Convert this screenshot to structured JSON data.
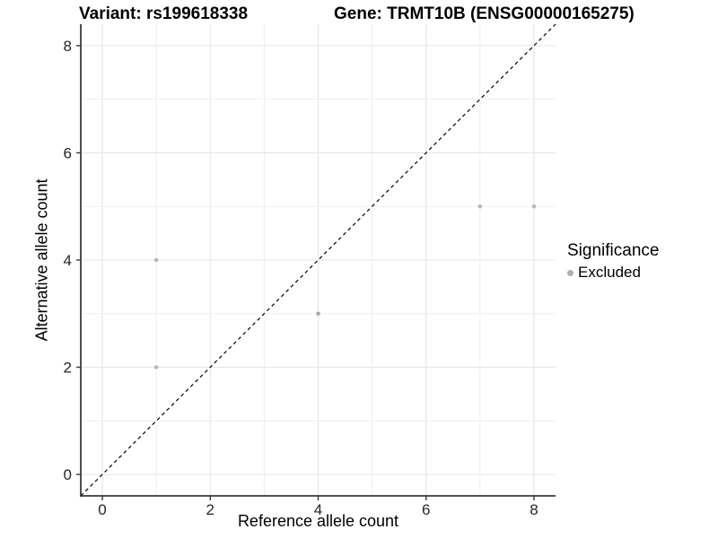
{
  "header": {
    "variant_title": "Variant: rs199618338",
    "gene_title": "Gene: TRMT10B (ENSG00000165275)"
  },
  "legend": {
    "title": "Significance",
    "items": [
      {
        "label": "Excluded",
        "color": "#aeaeae"
      }
    ]
  },
  "chart_data": {
    "type": "scatter",
    "title": "",
    "xlabel": "Reference allele count",
    "ylabel": "Alternative allele count",
    "xlim": [
      -0.4,
      8.4
    ],
    "ylim": [
      -0.4,
      8.4
    ],
    "x_ticks": [
      0,
      2,
      4,
      6,
      8
    ],
    "y_ticks": [
      0,
      2,
      4,
      6,
      8
    ],
    "grid_values": [
      0,
      1,
      2,
      3,
      4,
      5,
      6,
      7,
      8
    ],
    "grid": true,
    "legend_position": "right",
    "series": [
      {
        "name": "Excluded",
        "points": [
          {
            "x": 1,
            "y": 2,
            "color": "#b9b9b9"
          },
          {
            "x": 1,
            "y": 4,
            "color": "#b9b9b9"
          },
          {
            "x": 4,
            "y": 3,
            "color": "#a8a8a8"
          },
          {
            "x": 7,
            "y": 5,
            "color": "#b9b9b9"
          },
          {
            "x": 8,
            "y": 5,
            "color": "#b9b9b9"
          }
        ]
      }
    ],
    "reference_line": {
      "slope": 1,
      "intercept": 0,
      "style": "dashed",
      "color": "#000000"
    },
    "point_radius": 2.3,
    "colors": {
      "grid_major": "#e4e4e4",
      "grid_minor": "#efefef",
      "axis": "#3a3a3a",
      "tick_label": "#262626"
    }
  }
}
